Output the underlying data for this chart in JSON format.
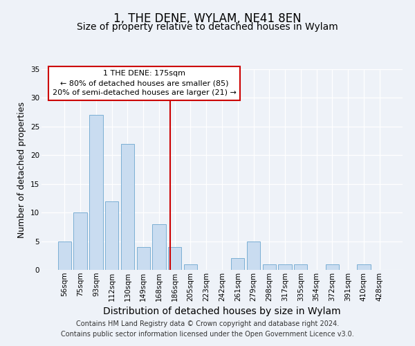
{
  "title": "1, THE DENE, WYLAM, NE41 8EN",
  "subtitle": "Size of property relative to detached houses in Wylam",
  "xlabel": "Distribution of detached houses by size in Wylam",
  "ylabel": "Number of detached properties",
  "bar_labels": [
    "56sqm",
    "75sqm",
    "93sqm",
    "112sqm",
    "130sqm",
    "149sqm",
    "168sqm",
    "186sqm",
    "205sqm",
    "223sqm",
    "242sqm",
    "261sqm",
    "279sqm",
    "298sqm",
    "317sqm",
    "335sqm",
    "354sqm",
    "372sqm",
    "391sqm",
    "410sqm",
    "428sqm"
  ],
  "bar_values": [
    5,
    10,
    27,
    12,
    22,
    4,
    8,
    4,
    1,
    0,
    0,
    2,
    5,
    1,
    1,
    1,
    0,
    1,
    0,
    1,
    0
  ],
  "bar_color": "#c9dcf0",
  "bar_edge_color": "#7bafd4",
  "vline_color": "#cc0000",
  "annotation_line1": "1 THE DENE: 175sqm",
  "annotation_line2": "← 80% of detached houses are smaller (85)",
  "annotation_line3": "20% of semi-detached houses are larger (21) →",
  "annotation_box_color": "#ffffff",
  "annotation_box_edge": "#cc0000",
  "ylim": [
    0,
    35
  ],
  "yticks": [
    0,
    5,
    10,
    15,
    20,
    25,
    30,
    35
  ],
  "footer": "Contains HM Land Registry data © Crown copyright and database right 2024.\nContains public sector information licensed under the Open Government Licence v3.0.",
  "bg_color": "#eef2f8",
  "plot_bg_color": "#eef2f8",
  "title_fontsize": 12,
  "subtitle_fontsize": 10,
  "xlabel_fontsize": 10,
  "ylabel_fontsize": 9,
  "tick_fontsize": 7.5,
  "footer_fontsize": 7
}
